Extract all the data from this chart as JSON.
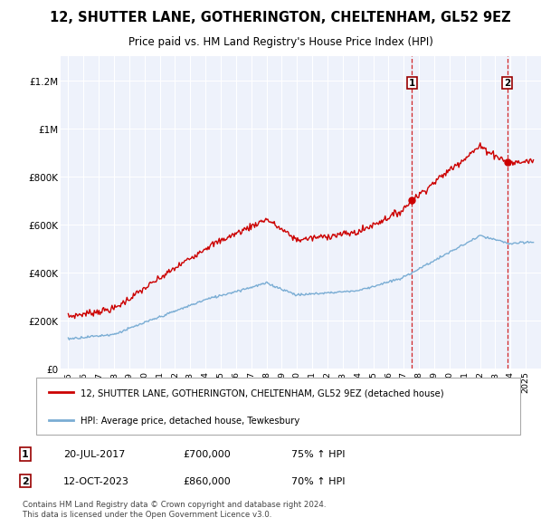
{
  "title": "12, SHUTTER LANE, GOTHERINGTON, CHELTENHAM, GL52 9EZ",
  "subtitle": "Price paid vs. HM Land Registry's House Price Index (HPI)",
  "title_fontsize": 10.5,
  "subtitle_fontsize": 8.5,
  "background_color": "#ffffff",
  "plot_bg_color": "#eef2fb",
  "grid_color": "#ffffff",
  "sale1_date": "20-JUL-2017",
  "sale1_price": 700000,
  "sale1_hpi": "75% ↑ HPI",
  "sale2_date": "12-OCT-2023",
  "sale2_price": 860000,
  "sale2_hpi": "70% ↑ HPI",
  "sale1_year": 2017.54,
  "sale2_year": 2023.79,
  "red_color": "#cc0000",
  "blue_color": "#7aadd4",
  "dashed_color": "#cc0000",
  "ylim": [
    0,
    1300000
  ],
  "xlim": [
    1994.5,
    2026.0
  ],
  "legend_label1": "12, SHUTTER LANE, GOTHERINGTON, CHELTENHAM, GL52 9EZ (detached house)",
  "legend_label2": "HPI: Average price, detached house, Tewkesbury",
  "footer1": "Contains HM Land Registry data © Crown copyright and database right 2024.",
  "footer2": "This data is licensed under the Open Government Licence v3.0.",
  "yticks": [
    0,
    200000,
    400000,
    600000,
    800000,
    1000000,
    1200000
  ],
  "ytick_labels": [
    "£0",
    "£200K",
    "£400K",
    "£600K",
    "£800K",
    "£1M",
    "£1.2M"
  ]
}
